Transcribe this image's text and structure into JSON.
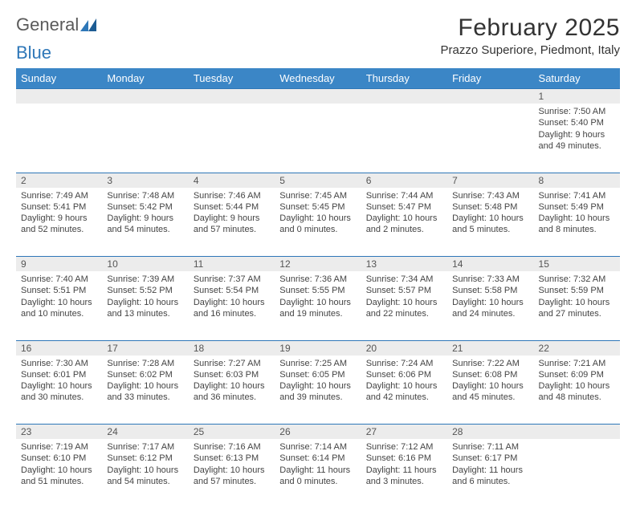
{
  "logo": {
    "word1": "General",
    "word2": "Blue"
  },
  "title": "February 2025",
  "location": "Prazzo Superiore, Piedmont, Italy",
  "weekdays": [
    "Sunday",
    "Monday",
    "Tuesday",
    "Wednesday",
    "Thursday",
    "Friday",
    "Saturday"
  ],
  "colors": {
    "header_bg": "#3b86c6",
    "border": "#2e77b8",
    "daynum_bg": "#ececec",
    "text": "#333333"
  },
  "weeks": [
    {
      "nums": [
        "",
        "",
        "",
        "",
        "",
        "",
        "1"
      ],
      "cells": [
        null,
        null,
        null,
        null,
        null,
        null,
        {
          "sunrise": "Sunrise: 7:50 AM",
          "sunset": "Sunset: 5:40 PM",
          "daylight1": "Daylight: 9 hours",
          "daylight2": "and 49 minutes."
        }
      ]
    },
    {
      "nums": [
        "2",
        "3",
        "4",
        "5",
        "6",
        "7",
        "8"
      ],
      "cells": [
        {
          "sunrise": "Sunrise: 7:49 AM",
          "sunset": "Sunset: 5:41 PM",
          "daylight1": "Daylight: 9 hours",
          "daylight2": "and 52 minutes."
        },
        {
          "sunrise": "Sunrise: 7:48 AM",
          "sunset": "Sunset: 5:42 PM",
          "daylight1": "Daylight: 9 hours",
          "daylight2": "and 54 minutes."
        },
        {
          "sunrise": "Sunrise: 7:46 AM",
          "sunset": "Sunset: 5:44 PM",
          "daylight1": "Daylight: 9 hours",
          "daylight2": "and 57 minutes."
        },
        {
          "sunrise": "Sunrise: 7:45 AM",
          "sunset": "Sunset: 5:45 PM",
          "daylight1": "Daylight: 10 hours",
          "daylight2": "and 0 minutes."
        },
        {
          "sunrise": "Sunrise: 7:44 AM",
          "sunset": "Sunset: 5:47 PM",
          "daylight1": "Daylight: 10 hours",
          "daylight2": "and 2 minutes."
        },
        {
          "sunrise": "Sunrise: 7:43 AM",
          "sunset": "Sunset: 5:48 PM",
          "daylight1": "Daylight: 10 hours",
          "daylight2": "and 5 minutes."
        },
        {
          "sunrise": "Sunrise: 7:41 AM",
          "sunset": "Sunset: 5:49 PM",
          "daylight1": "Daylight: 10 hours",
          "daylight2": "and 8 minutes."
        }
      ]
    },
    {
      "nums": [
        "9",
        "10",
        "11",
        "12",
        "13",
        "14",
        "15"
      ],
      "cells": [
        {
          "sunrise": "Sunrise: 7:40 AM",
          "sunset": "Sunset: 5:51 PM",
          "daylight1": "Daylight: 10 hours",
          "daylight2": "and 10 minutes."
        },
        {
          "sunrise": "Sunrise: 7:39 AM",
          "sunset": "Sunset: 5:52 PM",
          "daylight1": "Daylight: 10 hours",
          "daylight2": "and 13 minutes."
        },
        {
          "sunrise": "Sunrise: 7:37 AM",
          "sunset": "Sunset: 5:54 PM",
          "daylight1": "Daylight: 10 hours",
          "daylight2": "and 16 minutes."
        },
        {
          "sunrise": "Sunrise: 7:36 AM",
          "sunset": "Sunset: 5:55 PM",
          "daylight1": "Daylight: 10 hours",
          "daylight2": "and 19 minutes."
        },
        {
          "sunrise": "Sunrise: 7:34 AM",
          "sunset": "Sunset: 5:57 PM",
          "daylight1": "Daylight: 10 hours",
          "daylight2": "and 22 minutes."
        },
        {
          "sunrise": "Sunrise: 7:33 AM",
          "sunset": "Sunset: 5:58 PM",
          "daylight1": "Daylight: 10 hours",
          "daylight2": "and 24 minutes."
        },
        {
          "sunrise": "Sunrise: 7:32 AM",
          "sunset": "Sunset: 5:59 PM",
          "daylight1": "Daylight: 10 hours",
          "daylight2": "and 27 minutes."
        }
      ]
    },
    {
      "nums": [
        "16",
        "17",
        "18",
        "19",
        "20",
        "21",
        "22"
      ],
      "cells": [
        {
          "sunrise": "Sunrise: 7:30 AM",
          "sunset": "Sunset: 6:01 PM",
          "daylight1": "Daylight: 10 hours",
          "daylight2": "and 30 minutes."
        },
        {
          "sunrise": "Sunrise: 7:28 AM",
          "sunset": "Sunset: 6:02 PM",
          "daylight1": "Daylight: 10 hours",
          "daylight2": "and 33 minutes."
        },
        {
          "sunrise": "Sunrise: 7:27 AM",
          "sunset": "Sunset: 6:03 PM",
          "daylight1": "Daylight: 10 hours",
          "daylight2": "and 36 minutes."
        },
        {
          "sunrise": "Sunrise: 7:25 AM",
          "sunset": "Sunset: 6:05 PM",
          "daylight1": "Daylight: 10 hours",
          "daylight2": "and 39 minutes."
        },
        {
          "sunrise": "Sunrise: 7:24 AM",
          "sunset": "Sunset: 6:06 PM",
          "daylight1": "Daylight: 10 hours",
          "daylight2": "and 42 minutes."
        },
        {
          "sunrise": "Sunrise: 7:22 AM",
          "sunset": "Sunset: 6:08 PM",
          "daylight1": "Daylight: 10 hours",
          "daylight2": "and 45 minutes."
        },
        {
          "sunrise": "Sunrise: 7:21 AM",
          "sunset": "Sunset: 6:09 PM",
          "daylight1": "Daylight: 10 hours",
          "daylight2": "and 48 minutes."
        }
      ]
    },
    {
      "nums": [
        "23",
        "24",
        "25",
        "26",
        "27",
        "28",
        ""
      ],
      "cells": [
        {
          "sunrise": "Sunrise: 7:19 AM",
          "sunset": "Sunset: 6:10 PM",
          "daylight1": "Daylight: 10 hours",
          "daylight2": "and 51 minutes."
        },
        {
          "sunrise": "Sunrise: 7:17 AM",
          "sunset": "Sunset: 6:12 PM",
          "daylight1": "Daylight: 10 hours",
          "daylight2": "and 54 minutes."
        },
        {
          "sunrise": "Sunrise: 7:16 AM",
          "sunset": "Sunset: 6:13 PM",
          "daylight1": "Daylight: 10 hours",
          "daylight2": "and 57 minutes."
        },
        {
          "sunrise": "Sunrise: 7:14 AM",
          "sunset": "Sunset: 6:14 PM",
          "daylight1": "Daylight: 11 hours",
          "daylight2": "and 0 minutes."
        },
        {
          "sunrise": "Sunrise: 7:12 AM",
          "sunset": "Sunset: 6:16 PM",
          "daylight1": "Daylight: 11 hours",
          "daylight2": "and 3 minutes."
        },
        {
          "sunrise": "Sunrise: 7:11 AM",
          "sunset": "Sunset: 6:17 PM",
          "daylight1": "Daylight: 11 hours",
          "daylight2": "and 6 minutes."
        },
        null
      ]
    }
  ]
}
